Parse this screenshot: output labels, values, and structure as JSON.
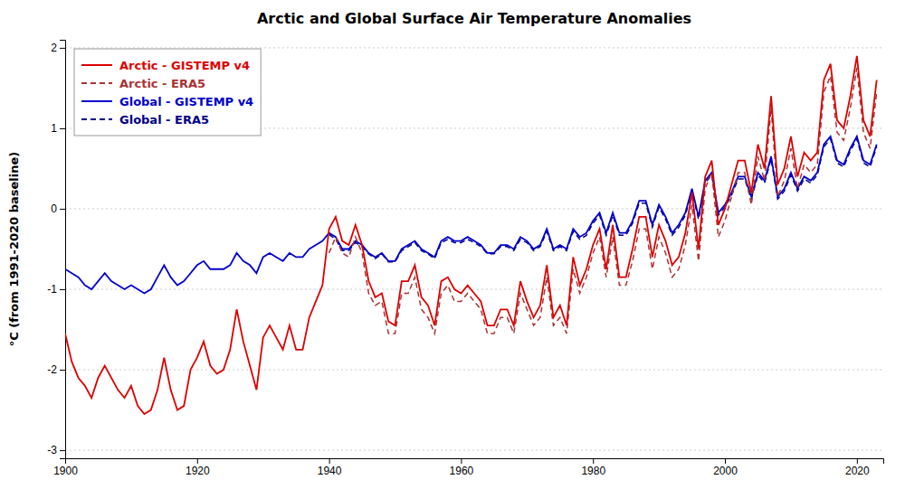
{
  "chart_data": {
    "type": "line",
    "title": "Arctic and Global Surface Air Temperature Anomalies",
    "ylabel": "°C (from 1991-2020 baseline)",
    "xlim": [
      1900,
      2024
    ],
    "ylim": [
      -3.1,
      2.1
    ],
    "xticks": [
      1900,
      1920,
      1940,
      1960,
      1980,
      2000,
      2020
    ],
    "yticks": [
      -3,
      -2,
      -1,
      0,
      1,
      2
    ],
    "grid": true,
    "legend": "upper left",
    "series": [
      {
        "name": "Arctic - GISTEMP v4",
        "color": "#dd0000",
        "line_style": "solid",
        "x": [
          1900,
          1901,
          1902,
          1903,
          1904,
          1905,
          1906,
          1907,
          1908,
          1909,
          1910,
          1911,
          1912,
          1913,
          1914,
          1915,
          1916,
          1917,
          1918,
          1919,
          1920,
          1921,
          1922,
          1923,
          1924,
          1925,
          1926,
          1927,
          1928,
          1929,
          1930,
          1931,
          1932,
          1933,
          1934,
          1935,
          1936,
          1937,
          1938,
          1939,
          1940,
          1941,
          1942,
          1943,
          1944,
          1945,
          1946,
          1947,
          1948,
          1949,
          1950,
          1951,
          1952,
          1953,
          1954,
          1955,
          1956,
          1957,
          1958,
          1959,
          1960,
          1961,
          1962,
          1963,
          1964,
          1965,
          1966,
          1967,
          1968,
          1969,
          1970,
          1971,
          1972,
          1973,
          1974,
          1975,
          1976,
          1977,
          1978,
          1979,
          1980,
          1981,
          1982,
          1983,
          1984,
          1985,
          1986,
          1987,
          1988,
          1989,
          1990,
          1991,
          1992,
          1993,
          1994,
          1995,
          1996,
          1997,
          1998,
          1999,
          2000,
          2001,
          2002,
          2003,
          2004,
          2005,
          2006,
          2007,
          2008,
          2009,
          2010,
          2011,
          2012,
          2013,
          2014,
          2015,
          2016,
          2017,
          2018,
          2019,
          2020,
          2021,
          2022,
          2023
        ],
        "values": [
          -1.55,
          -1.9,
          -2.1,
          -2.2,
          -2.35,
          -2.1,
          -1.95,
          -2.1,
          -2.25,
          -2.35,
          -2.2,
          -2.45,
          -2.55,
          -2.5,
          -2.25,
          -1.85,
          -2.25,
          -2.5,
          -2.45,
          -2.0,
          -1.85,
          -1.65,
          -1.95,
          -2.05,
          -2.0,
          -1.75,
          -1.25,
          -1.65,
          -1.95,
          -2.25,
          -1.6,
          -1.45,
          -1.6,
          -1.75,
          -1.45,
          -1.75,
          -1.75,
          -1.35,
          -1.15,
          -0.95,
          -0.25,
          -0.1,
          -0.4,
          -0.45,
          -0.2,
          -0.45,
          -0.9,
          -1.1,
          -1.05,
          -1.4,
          -1.45,
          -0.9,
          -0.9,
          -0.7,
          -1.1,
          -1.2,
          -1.45,
          -0.9,
          -0.85,
          -1.0,
          -1.05,
          -0.95,
          -1.05,
          -1.15,
          -1.45,
          -1.45,
          -1.25,
          -1.25,
          -1.45,
          -0.9,
          -1.15,
          -1.35,
          -1.2,
          -0.7,
          -1.35,
          -1.2,
          -1.45,
          -0.6,
          -0.95,
          -0.75,
          -0.45,
          -0.25,
          -0.75,
          -0.2,
          -0.85,
          -0.85,
          -0.5,
          -0.1,
          -0.1,
          -0.6,
          -0.2,
          -0.4,
          -0.7,
          -0.6,
          -0.3,
          0.2,
          -0.5,
          0.4,
          0.6,
          -0.2,
          0.0,
          0.3,
          0.6,
          0.6,
          0.2,
          0.8,
          0.5,
          1.4,
          0.3,
          0.5,
          0.9,
          0.4,
          0.7,
          0.6,
          0.7,
          1.6,
          1.8,
          1.1,
          1.0,
          1.4,
          1.9,
          1.1,
          0.9,
          1.6
        ]
      },
      {
        "name": "Arctic - ERA5",
        "color": "#aa3333",
        "line_style": "dashed",
        "x": [
          1940,
          1941,
          1942,
          1943,
          1944,
          1945,
          1946,
          1947,
          1948,
          1949,
          1950,
          1951,
          1952,
          1953,
          1954,
          1955,
          1956,
          1957,
          1958,
          1959,
          1960,
          1961,
          1962,
          1963,
          1964,
          1965,
          1966,
          1967,
          1968,
          1969,
          1970,
          1971,
          1972,
          1973,
          1974,
          1975,
          1976,
          1977,
          1978,
          1979,
          1980,
          1981,
          1982,
          1983,
          1984,
          1985,
          1986,
          1987,
          1988,
          1989,
          1990,
          1991,
          1992,
          1993,
          1994,
          1995,
          1996,
          1997,
          1998,
          1999,
          2000,
          2001,
          2002,
          2003,
          2004,
          2005,
          2006,
          2007,
          2008,
          2009,
          2010,
          2011,
          2012,
          2013,
          2014,
          2015,
          2016,
          2017,
          2018,
          2019,
          2020,
          2021,
          2022,
          2023
        ],
        "values": [
          -0.55,
          -0.35,
          -0.55,
          -0.6,
          -0.35,
          -0.55,
          -1.05,
          -1.2,
          -1.15,
          -1.55,
          -1.55,
          -1.05,
          -1.05,
          -0.85,
          -1.25,
          -1.35,
          -1.55,
          -1.05,
          -0.95,
          -1.15,
          -1.15,
          -1.05,
          -1.15,
          -1.25,
          -1.55,
          -1.55,
          -1.35,
          -1.35,
          -1.55,
          -1.05,
          -1.25,
          -1.45,
          -1.35,
          -0.85,
          -1.45,
          -1.35,
          -1.55,
          -0.75,
          -1.05,
          -0.85,
          -0.55,
          -0.35,
          -0.85,
          -0.35,
          -0.95,
          -0.95,
          -0.65,
          -0.25,
          -0.25,
          -0.75,
          -0.35,
          -0.55,
          -0.85,
          -0.75,
          -0.45,
          0.05,
          -0.65,
          0.25,
          0.45,
          -0.35,
          -0.15,
          0.15,
          0.45,
          0.45,
          0.05,
          0.65,
          0.35,
          1.25,
          0.15,
          0.35,
          0.75,
          0.25,
          0.55,
          0.45,
          0.55,
          1.45,
          1.65,
          0.95,
          0.85,
          1.25,
          1.75,
          0.95,
          0.75,
          1.45
        ]
      },
      {
        "name": "Global - GISTEMP v4",
        "color": "#0000cc",
        "line_style": "solid",
        "x": [
          1900,
          1901,
          1902,
          1903,
          1904,
          1905,
          1906,
          1907,
          1908,
          1909,
          1910,
          1911,
          1912,
          1913,
          1914,
          1915,
          1916,
          1917,
          1918,
          1919,
          1920,
          1921,
          1922,
          1923,
          1924,
          1925,
          1926,
          1927,
          1928,
          1929,
          1930,
          1931,
          1932,
          1933,
          1934,
          1935,
          1936,
          1937,
          1938,
          1939,
          1940,
          1941,
          1942,
          1943,
          1944,
          1945,
          1946,
          1947,
          1948,
          1949,
          1950,
          1951,
          1952,
          1953,
          1954,
          1955,
          1956,
          1957,
          1958,
          1959,
          1960,
          1961,
          1962,
          1963,
          1964,
          1965,
          1966,
          1967,
          1968,
          1969,
          1970,
          1971,
          1972,
          1973,
          1974,
          1975,
          1976,
          1977,
          1978,
          1979,
          1980,
          1981,
          1982,
          1983,
          1984,
          1985,
          1986,
          1987,
          1988,
          1989,
          1990,
          1991,
          1992,
          1993,
          1994,
          1995,
          1996,
          1997,
          1998,
          1999,
          2000,
          2001,
          2002,
          2003,
          2004,
          2005,
          2006,
          2007,
          2008,
          2009,
          2010,
          2011,
          2012,
          2013,
          2014,
          2015,
          2016,
          2017,
          2018,
          2019,
          2020,
          2021,
          2022,
          2023
        ],
        "values": [
          -0.75,
          -0.8,
          -0.85,
          -0.95,
          -1.0,
          -0.9,
          -0.8,
          -0.9,
          -0.95,
          -1.0,
          -0.95,
          -1.0,
          -1.05,
          -1.0,
          -0.85,
          -0.7,
          -0.85,
          -0.95,
          -0.9,
          -0.8,
          -0.7,
          -0.65,
          -0.75,
          -0.75,
          -0.75,
          -0.7,
          -0.55,
          -0.65,
          -0.7,
          -0.8,
          -0.6,
          -0.55,
          -0.6,
          -0.65,
          -0.55,
          -0.6,
          -0.6,
          -0.5,
          -0.45,
          -0.4,
          -0.3,
          -0.35,
          -0.5,
          -0.5,
          -0.4,
          -0.45,
          -0.55,
          -0.6,
          -0.55,
          -0.65,
          -0.65,
          -0.5,
          -0.45,
          -0.4,
          -0.5,
          -0.55,
          -0.6,
          -0.4,
          -0.35,
          -0.4,
          -0.4,
          -0.35,
          -0.4,
          -0.45,
          -0.55,
          -0.55,
          -0.45,
          -0.45,
          -0.5,
          -0.35,
          -0.4,
          -0.5,
          -0.45,
          -0.25,
          -0.5,
          -0.45,
          -0.5,
          -0.25,
          -0.35,
          -0.3,
          -0.15,
          -0.05,
          -0.3,
          -0.05,
          -0.3,
          -0.3,
          -0.15,
          0.1,
          0.1,
          -0.2,
          0.05,
          -0.1,
          -0.3,
          -0.2,
          -0.05,
          0.25,
          -0.1,
          0.35,
          0.45,
          -0.05,
          0.05,
          0.2,
          0.4,
          0.4,
          0.15,
          0.45,
          0.35,
          0.65,
          0.15,
          0.25,
          0.45,
          0.25,
          0.4,
          0.35,
          0.45,
          0.8,
          0.9,
          0.6,
          0.55,
          0.75,
          0.9,
          0.6,
          0.55,
          0.8
        ]
      },
      {
        "name": "Global - ERA5",
        "color": "#000088",
        "line_style": "dashed",
        "x": [
          1940,
          1941,
          1942,
          1943,
          1944,
          1945,
          1946,
          1947,
          1948,
          1949,
          1950,
          1951,
          1952,
          1953,
          1954,
          1955,
          1956,
          1957,
          1958,
          1959,
          1960,
          1961,
          1962,
          1963,
          1964,
          1965,
          1966,
          1967,
          1968,
          1969,
          1970,
          1971,
          1972,
          1973,
          1974,
          1975,
          1976,
          1977,
          1978,
          1979,
          1980,
          1981,
          1982,
          1983,
          1984,
          1985,
          1986,
          1987,
          1988,
          1989,
          1990,
          1991,
          1992,
          1993,
          1994,
          1995,
          1996,
          1997,
          1998,
          1999,
          2000,
          2001,
          2002,
          2003,
          2004,
          2005,
          2006,
          2007,
          2008,
          2009,
          2010,
          2011,
          2012,
          2013,
          2014,
          2015,
          2016,
          2017,
          2018,
          2019,
          2020,
          2021,
          2022,
          2023
        ],
        "values": [
          -0.32,
          -0.38,
          -0.52,
          -0.52,
          -0.42,
          -0.47,
          -0.56,
          -0.62,
          -0.56,
          -0.66,
          -0.66,
          -0.52,
          -0.47,
          -0.42,
          -0.52,
          -0.56,
          -0.62,
          -0.42,
          -0.38,
          -0.42,
          -0.42,
          -0.38,
          -0.42,
          -0.47,
          -0.56,
          -0.56,
          -0.47,
          -0.47,
          -0.52,
          -0.38,
          -0.42,
          -0.52,
          -0.47,
          -0.28,
          -0.52,
          -0.47,
          -0.52,
          -0.28,
          -0.38,
          -0.33,
          -0.18,
          -0.08,
          -0.33,
          -0.08,
          -0.33,
          -0.33,
          -0.18,
          0.07,
          0.07,
          -0.23,
          0.02,
          -0.13,
          -0.33,
          -0.23,
          -0.08,
          0.22,
          -0.13,
          0.32,
          0.42,
          -0.08,
          0.02,
          0.17,
          0.37,
          0.37,
          0.12,
          0.42,
          0.32,
          0.62,
          0.12,
          0.22,
          0.42,
          0.22,
          0.37,
          0.32,
          0.42,
          0.77,
          0.87,
          0.57,
          0.52,
          0.72,
          0.87,
          0.57,
          0.52,
          0.77
        ]
      }
    ]
  }
}
